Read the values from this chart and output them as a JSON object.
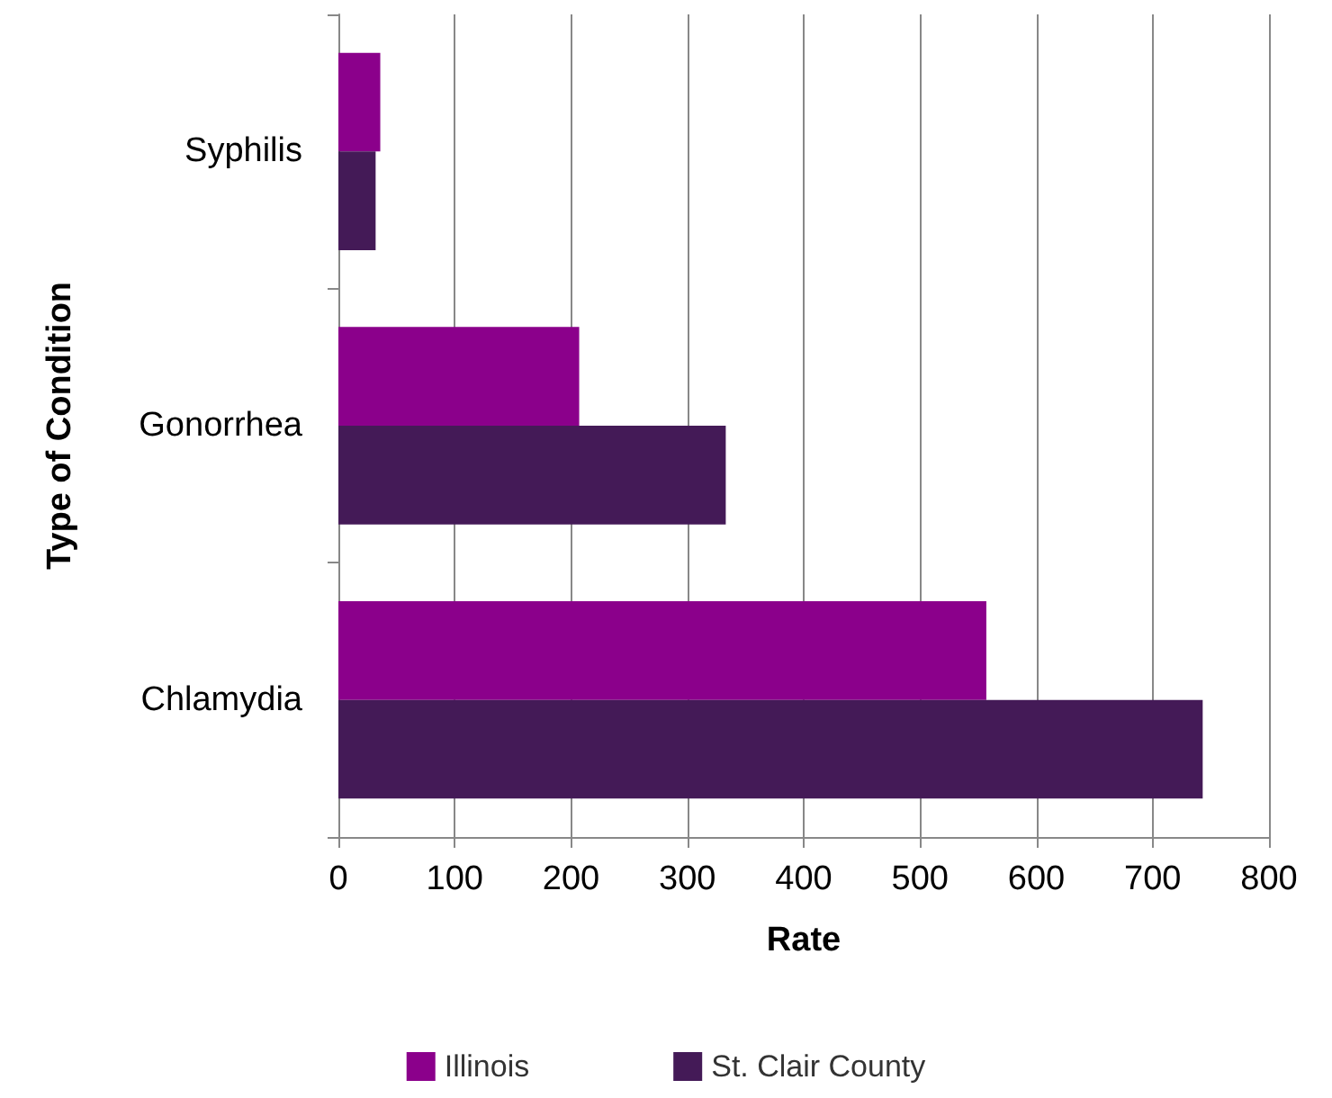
{
  "chart_data": {
    "type": "bar",
    "orientation": "horizontal",
    "xlabel": "Rate",
    "ylabel": "Type of Condition",
    "categories": [
      "Syphilis",
      "Gonorrhea",
      "Chlamydia"
    ],
    "series": [
      {
        "name": "Illinois",
        "color": "#8b008b",
        "values": [
          36,
          207,
          557
        ]
      },
      {
        "name": "St. Clair County",
        "color": "#441a57",
        "values": [
          32,
          333,
          743
        ]
      }
    ],
    "xlim": [
      0,
      800
    ],
    "xticks": [
      0,
      100,
      200,
      300,
      400,
      500,
      600,
      700,
      800
    ],
    "grid": "x",
    "legend": "bottom"
  }
}
